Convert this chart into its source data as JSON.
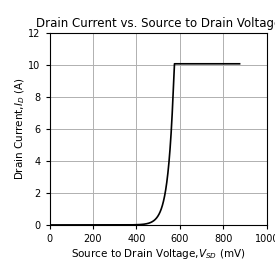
{
  "title": "Drain Current vs. Source to Drain Voltage",
  "xlabel_main": "Source to Drain Voltage,",
  "xlabel_sub": "V_SD",
  "xlabel_unit": " (mV)",
  "ylabel_main": "Drain Current,",
  "ylabel_sub": "I_D",
  "ylabel_unit": " (A)",
  "xlim": [
    0,
    1000
  ],
  "ylim": [
    0,
    12
  ],
  "xticks": [
    0,
    200,
    400,
    600,
    800,
    1000
  ],
  "yticks": [
    0,
    2,
    4,
    6,
    8,
    10,
    12
  ],
  "curve_color": "#000000",
  "grid_color": "#b0b0b0",
  "background_color": "#ffffff",
  "title_fontsize": 8.5,
  "label_fontsize": 7.5,
  "tick_fontsize": 7,
  "curve_A": 2.5e-09,
  "curve_B": 0.0385,
  "curve_vth": 0.0,
  "curve_vmax": 875
}
